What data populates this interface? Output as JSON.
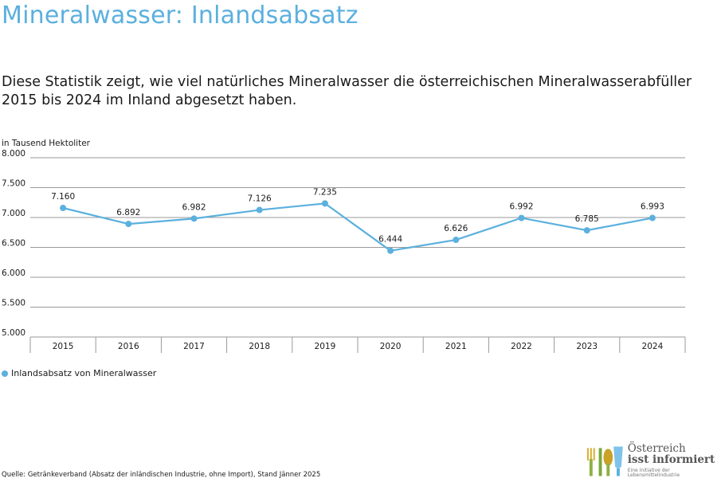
{
  "header": {
    "title": "Mineralwasser: Inlandsabsatz",
    "subtitle": "Diese Statistik zeigt, wie viel natürliches Mineralwasser die österreichischen Mineralwasserabfüller 2015 bis 2024 im Inland abgesetzt haben."
  },
  "chart_data": {
    "type": "line",
    "title": "Mineralwasser: Inlandsabsatz",
    "ylabel": "in Tausend Hektoliter",
    "xlabel": "",
    "categories": [
      "2015",
      "2016",
      "2017",
      "2018",
      "2019",
      "2020",
      "2021",
      "2022",
      "2023",
      "2024"
    ],
    "series": [
      {
        "name": "Inlandsabsatz von Mineralwasser",
        "values": [
          7160,
          6892,
          6982,
          7126,
          7235,
          6444,
          6626,
          6992,
          6785,
          6993
        ],
        "labels": [
          "7.160",
          "6.892",
          "6.982",
          "7.126",
          "7.235",
          "6.444",
          "6.626",
          "6.992",
          "6.785",
          "6.993"
        ]
      }
    ],
    "ylim": [
      5000,
      8000
    ],
    "yticks": [
      5000,
      5500,
      6000,
      6500,
      7000,
      7500,
      8000
    ],
    "ytick_labels": [
      "5.000",
      "5.500",
      "6.000",
      "6.500",
      "7.000",
      "7.500",
      "8.000"
    ],
    "grid": true,
    "legend": "bottom-left",
    "color": "#5bb0de"
  },
  "footer": {
    "source": "Quelle: Getränkeverband (Absatz der inländischen Industrie, ohne Import),  Stand Jänner 2025"
  },
  "logo": {
    "line1": "Österreich",
    "line2": "isst informiert",
    "line3": "Eine Initiative der Lebensmittelindustrie"
  }
}
